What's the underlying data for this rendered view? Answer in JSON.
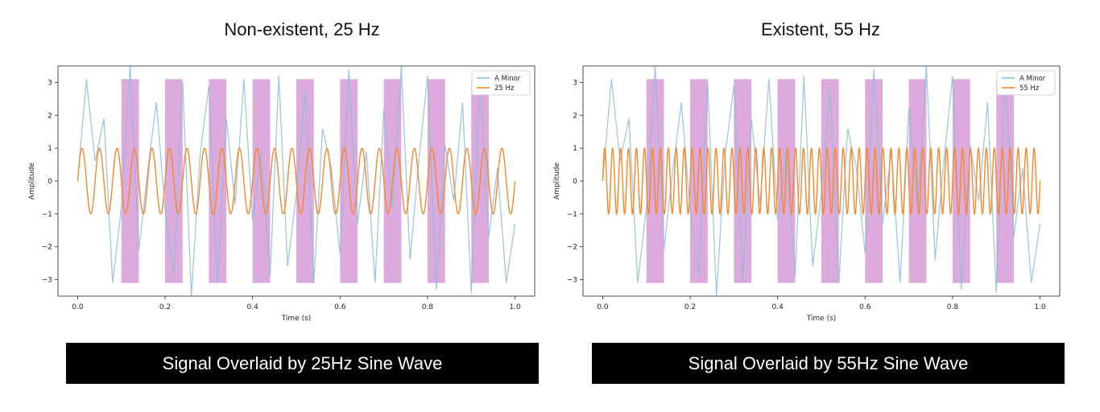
{
  "panels": [
    {
      "heading": "Non-existent, 25 Hz",
      "caption": "Signal Overlaid by 25Hz Sine Wave"
    },
    {
      "heading": "Existent, 55 Hz",
      "caption": "Signal Overlaid by 55Hz Sine Wave"
    }
  ],
  "chart_data": [
    {
      "type": "line",
      "title": "",
      "xlabel": "Time (s)",
      "ylabel": "Amplitude",
      "xlim": [
        0,
        1
      ],
      "ylim": [
        -3.5,
        3.5
      ],
      "x_ticks": [
        "0.0",
        "0.2",
        "0.4",
        "0.6",
        "0.8",
        "1.0"
      ],
      "y_ticks": [
        "3",
        "2",
        "1",
        "0",
        "−1",
        "−2",
        "−3"
      ],
      "x_tick_values": [
        0,
        0.2,
        0.4,
        0.6,
        0.8,
        1.0
      ],
      "y_tick_values": [
        3,
        2,
        1,
        0,
        -1,
        -2,
        -3
      ],
      "legend_position": "top-right",
      "grid": false,
      "series": [
        {
          "name": "A Minor",
          "color": "#8fbcdb",
          "x": [
            0,
            0.02,
            0.04,
            0.06,
            0.08,
            0.1,
            0.12,
            0.14,
            0.16,
            0.18,
            0.2,
            0.22,
            0.24,
            0.26,
            0.28,
            0.3,
            0.32,
            0.34,
            0.36,
            0.38,
            0.4,
            0.42,
            0.44,
            0.46,
            0.48,
            0.5,
            0.52,
            0.54,
            0.56,
            0.58,
            0.6,
            0.62,
            0.64,
            0.66,
            0.68,
            0.7,
            0.72,
            0.74,
            0.76,
            0.78,
            0.8,
            0.82,
            0.84,
            0.86,
            0.88,
            0.9,
            0.92,
            0.94,
            0.96,
            0.98,
            1.0
          ],
          "values": [
            0.0,
            3.1,
            0.6,
            1.9,
            -3.1,
            -0.8,
            3.5,
            -2.1,
            0.3,
            2.4,
            -0.9,
            -2.9,
            3.0,
            -3.5,
            0.8,
            2.9,
            -3.1,
            1.9,
            -0.7,
            3.1,
            -1.2,
            0.9,
            -2.9,
            3.2,
            -2.6,
            -0.4,
            2.8,
            -3.1,
            1.6,
            0.4,
            -2.2,
            3.4,
            -1.3,
            0.9,
            -3.1,
            2.2,
            -0.8,
            3.5,
            -2.4,
            0.6,
            3.2,
            -3.3,
            1.1,
            -0.6,
            2.4,
            -3.4,
            3.3,
            -1.7,
            0.4,
            -3.1,
            -1.3
          ],
          "opacity": 0.85
        },
        {
          "name": "25 Hz",
          "color": "#f4892b",
          "frequency_hz": 25,
          "amplitude": 1
        }
      ],
      "highlight_bands": {
        "color": "#dcaadc",
        "x_ranges": [
          [
            0.1,
            0.14
          ],
          [
            0.2,
            0.24
          ],
          [
            0.3,
            0.34
          ],
          [
            0.4,
            0.44
          ],
          [
            0.5,
            0.54
          ],
          [
            0.6,
            0.64
          ],
          [
            0.7,
            0.74
          ],
          [
            0.8,
            0.84
          ],
          [
            0.9,
            0.94
          ]
        ],
        "y_range": [
          -3.1,
          3.1
        ]
      }
    },
    {
      "type": "line",
      "title": "",
      "xlabel": "Time (s)",
      "ylabel": "Amplitude",
      "xlim": [
        0,
        1
      ],
      "ylim": [
        -3.5,
        3.5
      ],
      "x_ticks": [
        "0.0",
        "0.2",
        "0.4",
        "0.6",
        "0.8",
        "1.0"
      ],
      "y_ticks": [
        "3",
        "2",
        "1",
        "0",
        "−1",
        "−2",
        "−3"
      ],
      "x_tick_values": [
        0,
        0.2,
        0.4,
        0.6,
        0.8,
        1.0
      ],
      "y_tick_values": [
        3,
        2,
        1,
        0,
        -1,
        -2,
        -3
      ],
      "legend_position": "top-right",
      "grid": false,
      "series": [
        {
          "name": "A Minor",
          "color": "#8fbcdb",
          "x": [
            0,
            0.02,
            0.04,
            0.06,
            0.08,
            0.1,
            0.12,
            0.14,
            0.16,
            0.18,
            0.2,
            0.22,
            0.24,
            0.26,
            0.28,
            0.3,
            0.32,
            0.34,
            0.36,
            0.38,
            0.4,
            0.42,
            0.44,
            0.46,
            0.48,
            0.5,
            0.52,
            0.54,
            0.56,
            0.58,
            0.6,
            0.62,
            0.64,
            0.66,
            0.68,
            0.7,
            0.72,
            0.74,
            0.76,
            0.78,
            0.8,
            0.82,
            0.84,
            0.86,
            0.88,
            0.9,
            0.92,
            0.94,
            0.96,
            0.98,
            1.0
          ],
          "values": [
            0.0,
            3.1,
            0.6,
            1.9,
            -3.1,
            -0.8,
            3.5,
            -2.1,
            0.3,
            2.4,
            -0.9,
            -2.9,
            3.0,
            -3.5,
            0.8,
            2.9,
            -3.1,
            1.9,
            -0.7,
            3.1,
            -1.2,
            0.9,
            -2.9,
            3.2,
            -2.6,
            -0.4,
            2.8,
            -3.1,
            1.6,
            0.4,
            -2.2,
            3.4,
            -1.3,
            0.9,
            -3.1,
            2.2,
            -0.8,
            3.5,
            -2.4,
            0.6,
            3.2,
            -3.3,
            1.1,
            -0.6,
            2.4,
            -3.4,
            3.3,
            -1.7,
            0.4,
            -3.1,
            -1.3
          ],
          "opacity": 0.85
        },
        {
          "name": "55 Hz",
          "color": "#f4892b",
          "frequency_hz": 55,
          "amplitude": 1
        }
      ],
      "highlight_bands": {
        "color": "#dcaadc",
        "x_ranges": [
          [
            0.1,
            0.14
          ],
          [
            0.2,
            0.24
          ],
          [
            0.3,
            0.34
          ],
          [
            0.4,
            0.44
          ],
          [
            0.5,
            0.54
          ],
          [
            0.6,
            0.64
          ],
          [
            0.7,
            0.74
          ],
          [
            0.8,
            0.84
          ],
          [
            0.9,
            0.94
          ]
        ],
        "y_range": [
          -3.1,
          3.1
        ]
      }
    }
  ]
}
